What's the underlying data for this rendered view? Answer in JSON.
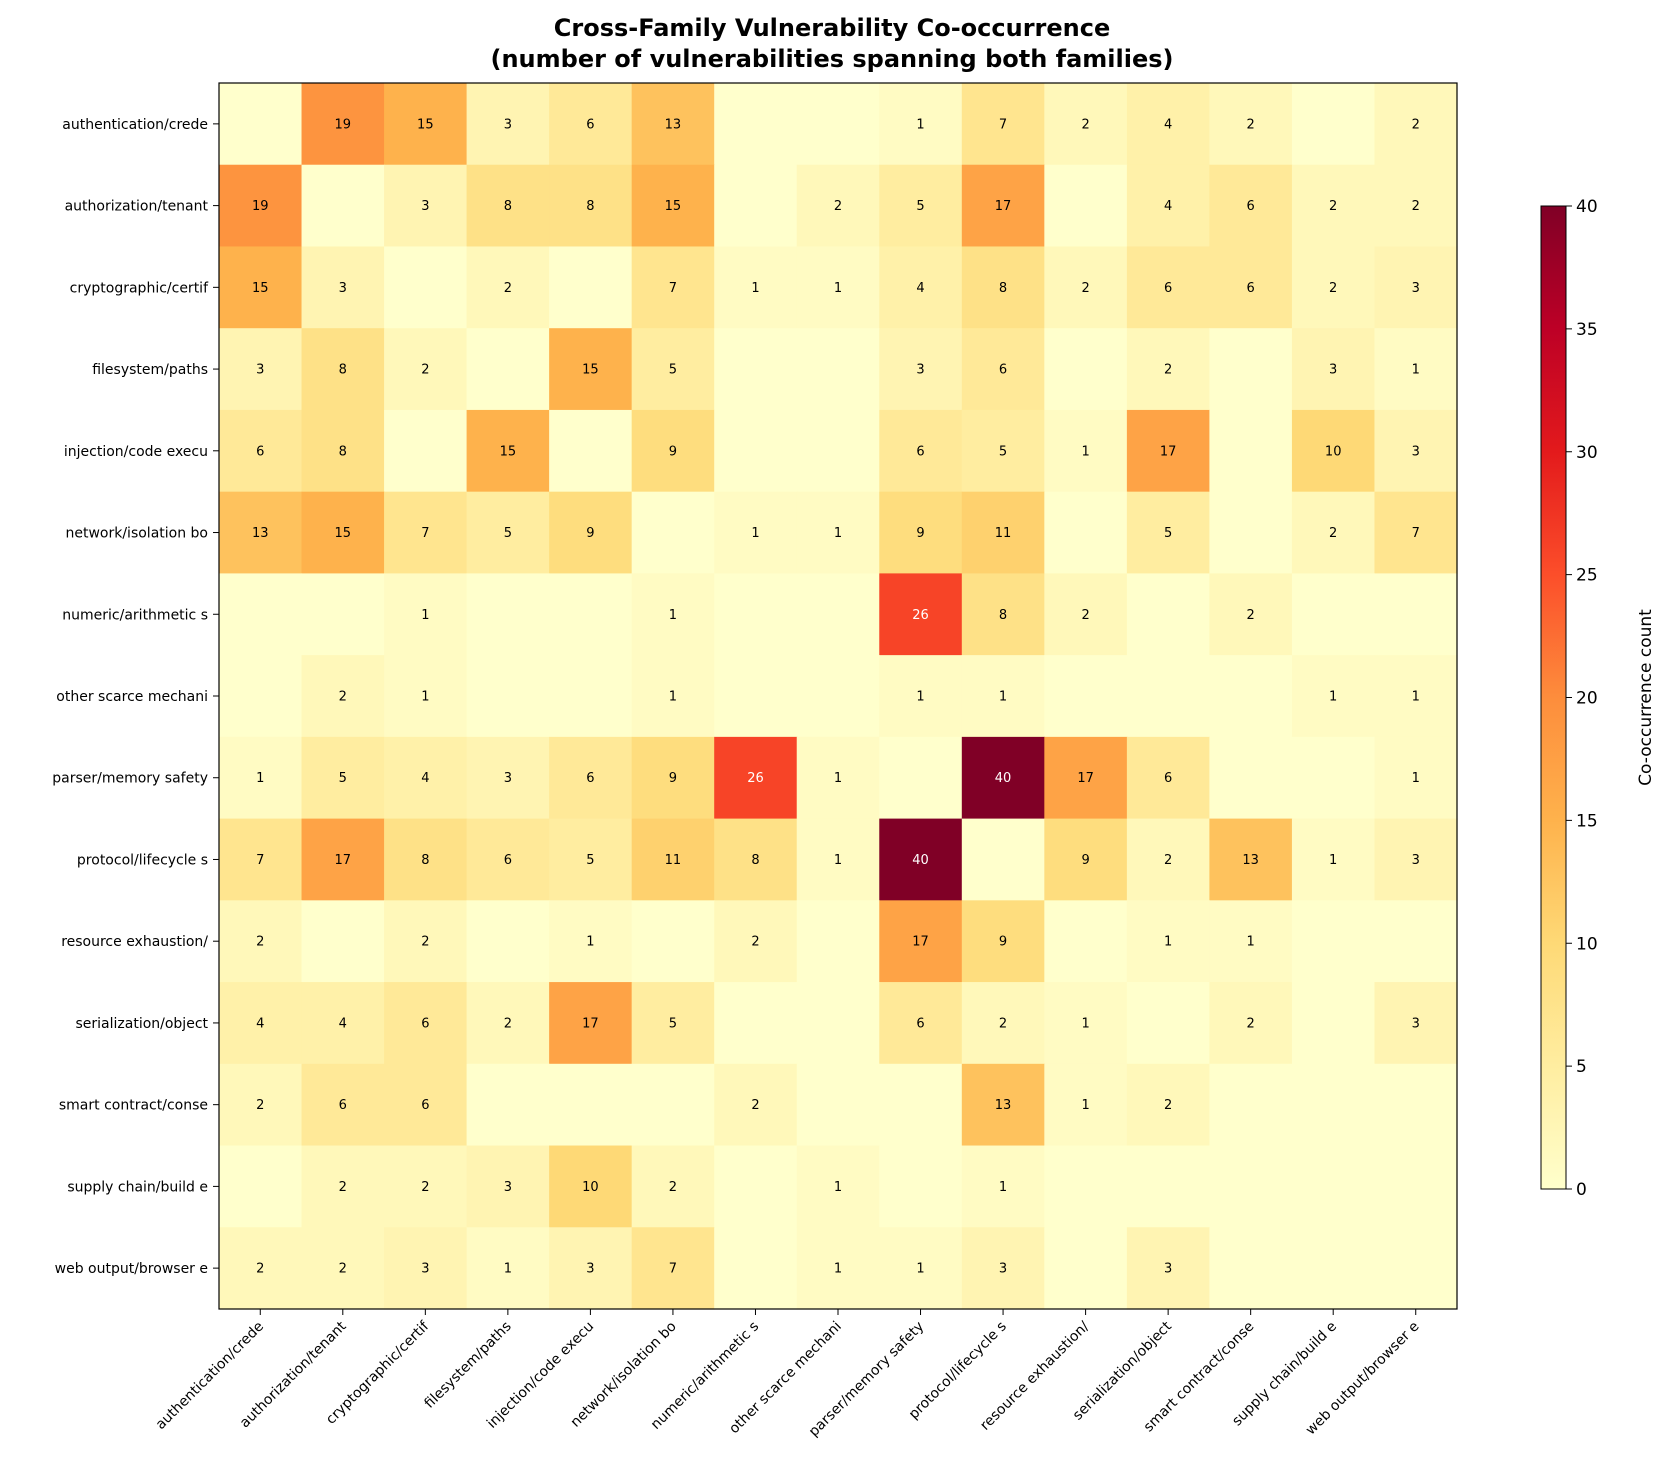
{
  "chart_data": {
    "type": "heatmap",
    "title_line1": "Cross-Family Vulnerability Co-occurrence",
    "title_line2": "(number of vulnerabilities spanning both families)",
    "xlabel": "",
    "ylabel": "",
    "categories": [
      "authentication/crede",
      "authorization/tenant",
      "cryptographic/certif",
      "filesystem/paths",
      "injection/code execu",
      "network/isolation bo",
      "numeric/arithmetic s",
      "other scarce mechani",
      "parser/memory safety",
      "protocol/lifecycle s",
      "resource exhaustion/",
      "serialization/object",
      "smart contract/conse",
      "supply chain/build e",
      "web output/browser e"
    ],
    "matrix": [
      [
        0,
        19,
        15,
        3,
        6,
        13,
        0,
        0,
        1,
        7,
        2,
        4,
        2,
        0,
        2
      ],
      [
        19,
        0,
        3,
        8,
        8,
        15,
        0,
        2,
        5,
        17,
        0,
        4,
        6,
        2,
        2
      ],
      [
        15,
        3,
        0,
        2,
        0,
        7,
        1,
        1,
        4,
        8,
        2,
        6,
        6,
        2,
        3
      ],
      [
        3,
        8,
        2,
        0,
        15,
        5,
        0,
        0,
        3,
        6,
        0,
        2,
        0,
        3,
        1
      ],
      [
        6,
        8,
        0,
        15,
        0,
        9,
        0,
        0,
        6,
        5,
        1,
        17,
        0,
        10,
        3
      ],
      [
        13,
        15,
        7,
        5,
        9,
        0,
        1,
        1,
        9,
        11,
        0,
        5,
        0,
        2,
        7
      ],
      [
        0,
        0,
        1,
        0,
        0,
        1,
        0,
        0,
        26,
        8,
        2,
        0,
        2,
        0,
        0
      ],
      [
        0,
        2,
        1,
        0,
        0,
        1,
        0,
        0,
        1,
        1,
        0,
        0,
        0,
        1,
        1
      ],
      [
        1,
        5,
        4,
        3,
        6,
        9,
        26,
        1,
        0,
        40,
        17,
        6,
        0,
        0,
        1
      ],
      [
        7,
        17,
        8,
        6,
        5,
        11,
        8,
        1,
        40,
        0,
        9,
        2,
        13,
        1,
        3
      ],
      [
        2,
        0,
        2,
        0,
        1,
        0,
        2,
        0,
        17,
        9,
        0,
        1,
        1,
        0,
        0
      ],
      [
        4,
        4,
        6,
        2,
        17,
        5,
        0,
        0,
        6,
        2,
        1,
        0,
        2,
        0,
        3
      ],
      [
        2,
        6,
        6,
        0,
        0,
        0,
        2,
        0,
        0,
        13,
        1,
        2,
        0,
        0,
        0
      ],
      [
        0,
        2,
        2,
        3,
        10,
        2,
        0,
        1,
        0,
        1,
        0,
        0,
        0,
        0,
        0
      ],
      [
        2,
        2,
        3,
        1,
        3,
        7,
        0,
        1,
        1,
        3,
        0,
        3,
        0,
        0,
        0
      ]
    ],
    "zero_labels_shown": false,
    "colormap": "YlOrRd",
    "vmin": 0,
    "vmax": 40,
    "colorbar": {
      "label": "Co-occurrence count",
      "ticks": [
        0,
        5,
        10,
        15,
        20,
        25,
        30,
        35,
        40
      ],
      "placement": "right"
    },
    "colors": {
      "scale": [
        "#ffffcc",
        "#ffeda0",
        "#fed976",
        "#feb24c",
        "#fd8d3c",
        "#fc4e2a",
        "#e31a1c",
        "#bd0026",
        "#800026"
      ],
      "text_dark": "#000000",
      "text_light": "#ffffff"
    }
  }
}
